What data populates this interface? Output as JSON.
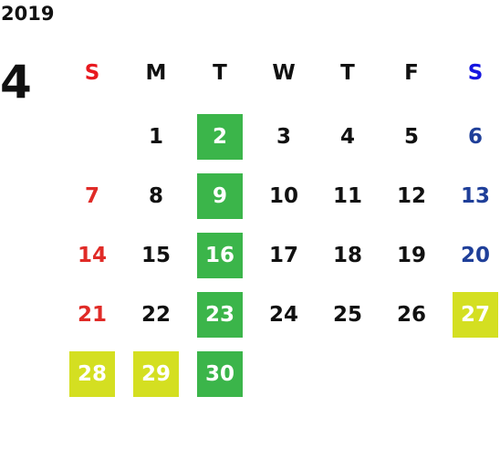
{
  "year": "2019",
  "month": "4",
  "weekdays": [
    "S",
    "M",
    "T",
    "W",
    "T",
    "F",
    "S"
  ],
  "weekday_colors": [
    "#e8191f",
    "#111111",
    "#111111",
    "#111111",
    "#111111",
    "#111111",
    "#1515e0"
  ],
  "day_colors": [
    "#e02b27",
    "#111111",
    "#111111",
    "#111111",
    "#111111",
    "#111111",
    "#1f3f99"
  ],
  "weeks": [
    [
      null,
      1,
      {
        "day": 2,
        "highlight": "#3bb54a"
      },
      3,
      4,
      5,
      6
    ],
    [
      7,
      8,
      {
        "day": 9,
        "highlight": "#3bb54a"
      },
      10,
      11,
      12,
      13
    ],
    [
      14,
      15,
      {
        "day": 16,
        "highlight": "#3bb54a"
      },
      17,
      18,
      19,
      20
    ],
    [
      21,
      22,
      {
        "day": 23,
        "highlight": "#3bb54a"
      },
      24,
      25,
      26,
      {
        "day": 27,
        "highlight": "#d4df21"
      }
    ],
    [
      {
        "day": 28,
        "highlight": "#d4df21"
      },
      {
        "day": 29,
        "highlight": "#d4df21"
      },
      {
        "day": 30,
        "highlight": "#3bb54a"
      },
      null,
      null,
      null,
      null
    ]
  ]
}
